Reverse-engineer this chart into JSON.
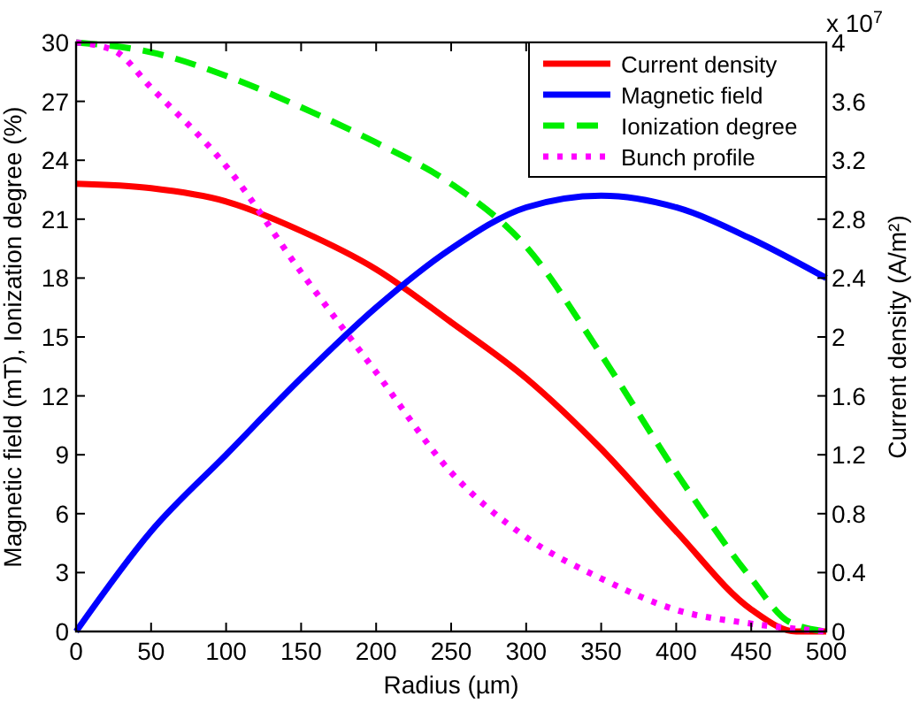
{
  "chart_data": {
    "type": "line",
    "xlabel": "Radius (µm)",
    "ylabel": "Magnetic field (mT), Ionization degree (%)",
    "y2label": "Current density (A/m²)",
    "xlim": [
      0,
      500
    ],
    "xticks": [
      0,
      50,
      100,
      150,
      200,
      250,
      300,
      350,
      400,
      450,
      500
    ],
    "ylim": [
      0,
      30
    ],
    "yticks": [
      0,
      3,
      6,
      9,
      12,
      15,
      18,
      21,
      24,
      27,
      30
    ],
    "y2lim": [
      0,
      4
    ],
    "y2ticks": [
      0,
      0.4,
      0.8,
      1.2,
      1.6,
      2,
      2.4,
      2.8,
      3.2,
      3.6,
      4
    ],
    "annotations": [
      "x 10$^{7}$"
    ],
    "legend": "top right",
    "grid": false,
    "series": [
      {
        "name": "Current density",
        "color": "#ff0000",
        "axis": "y2",
        "line_style": "solid",
        "x": [
          0,
          50,
          100,
          150,
          200,
          250,
          300,
          350,
          400,
          450,
          480,
          500
        ],
        "values": [
          3.04,
          3.01,
          2.92,
          2.72,
          2.46,
          2.1,
          1.72,
          1.24,
          0.68,
          0.15,
          0,
          0
        ]
      },
      {
        "name": "Magnetic field",
        "color": "#0000ff",
        "line_style": "solid",
        "x": [
          0,
          50,
          100,
          150,
          200,
          250,
          300,
          350,
          400,
          450,
          500
        ],
        "values": [
          0,
          5.1,
          9,
          12.9,
          16.5,
          19.5,
          21.6,
          22.2,
          21.6,
          20,
          18
        ]
      },
      {
        "name": "Ionization degree",
        "color": "#00ee00",
        "line_style": "dashed",
        "x": [
          0,
          50,
          100,
          150,
          200,
          250,
          300,
          350,
          400,
          450,
          475,
          500
        ],
        "values": [
          30,
          29.5,
          28.3,
          26.7,
          24.9,
          22.8,
          19.6,
          14.1,
          8.1,
          2.7,
          0.5,
          0
        ]
      },
      {
        "name": "Bunch profile",
        "color": "#ff00ff",
        "line_style": "dotted",
        "x": [
          0,
          25,
          50,
          100,
          150,
          200,
          250,
          300,
          350,
          400,
          450,
          500
        ],
        "values": [
          30,
          29.6,
          27.7,
          23.7,
          18.3,
          13.2,
          8.1,
          4.8,
          2.7,
          1.1,
          0.4,
          0
        ]
      }
    ]
  }
}
